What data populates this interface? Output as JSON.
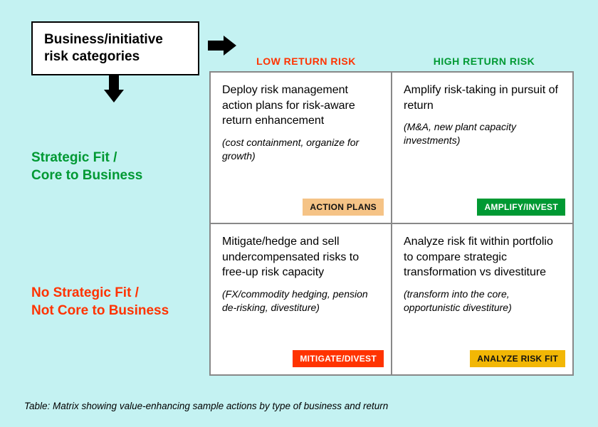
{
  "colors": {
    "background": "#c4f2f2",
    "green": "#009933",
    "orange": "#ff3300",
    "badge_tan": "#f5c386",
    "badge_green": "#009933",
    "badge_red": "#ff3300",
    "badge_amber": "#f2b705",
    "text": "#111111"
  },
  "title": "Business/initiative risk categories",
  "columns": [
    {
      "label": "LOW RETURN RISK",
      "color": "#ff3300"
    },
    {
      "label": "HIGH RETURN RISK",
      "color": "#009933"
    }
  ],
  "rows": [
    {
      "label": "Strategic Fit /\nCore to Business",
      "color": "#009933"
    },
    {
      "label": "No Strategic Fit /\nNot Core to Business",
      "color": "#ff3300"
    }
  ],
  "cells": [
    [
      {
        "main": "Deploy risk management action plans for risk-aware return enhancement",
        "sub": "(cost containment, organize for growth)",
        "badge": "ACTION PLANS",
        "badge_bg": "#f5c386",
        "badge_fg": "#111111"
      },
      {
        "main": "Amplify risk-taking in pursuit of return",
        "sub": "(M&A, new plant capacity investments)",
        "badge": "AMPLIFY/INVEST",
        "badge_bg": "#009933",
        "badge_fg": "#ffffff"
      }
    ],
    [
      {
        "main": "Mitigate/hedge and sell undercompensated risks to free-up risk capacity",
        "sub": "(FX/commodity hedging, pension de-risking, divestiture)",
        "badge": "MITIGATE/DIVEST",
        "badge_bg": "#ff3300",
        "badge_fg": "#ffffff"
      },
      {
        "main": "Analyze risk fit within portfolio to compare strategic transformation vs divestiture",
        "sub": "(transform into the core, opportunistic divestiture)",
        "badge": "ANALYZE RISK FIT",
        "badge_bg": "#f2b705",
        "badge_fg": "#111111"
      }
    ]
  ],
  "caption": "Table: Matrix showing value-enhancing sample actions by type of business and return"
}
